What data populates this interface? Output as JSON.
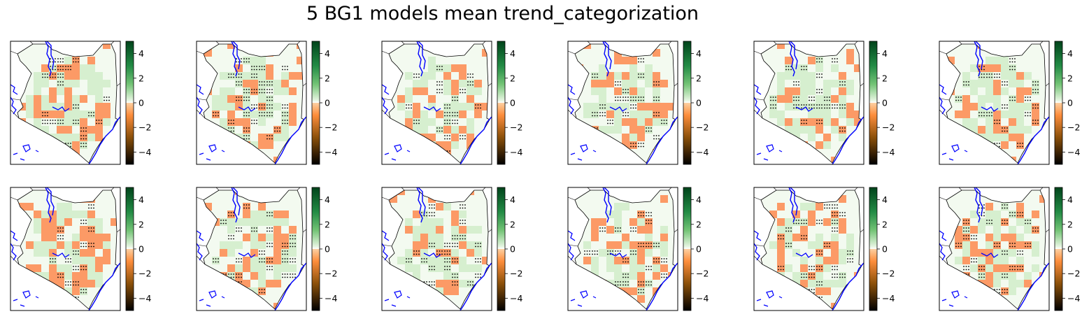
{
  "figure": {
    "title": "5 BG1 models mean trend_categorization"
  },
  "panels": {
    "rows": 2,
    "cols": 6
  },
  "colorbar": {
    "range": [
      -5,
      5
    ],
    "ticks": [
      4,
      2,
      0,
      -2,
      -4
    ],
    "tick_labels": [
      "4",
      "2",
      "0",
      "−2",
      "−4"
    ],
    "colormap": "BrBG-like (brown → orange | white → green)"
  },
  "colors": {
    "positive_light": "#d6efcf",
    "background_green": "#f3faf0",
    "negative": "#fc9a66",
    "coastline": "#0000ff",
    "border": "#000000",
    "stipple": "#000000"
  }
}
